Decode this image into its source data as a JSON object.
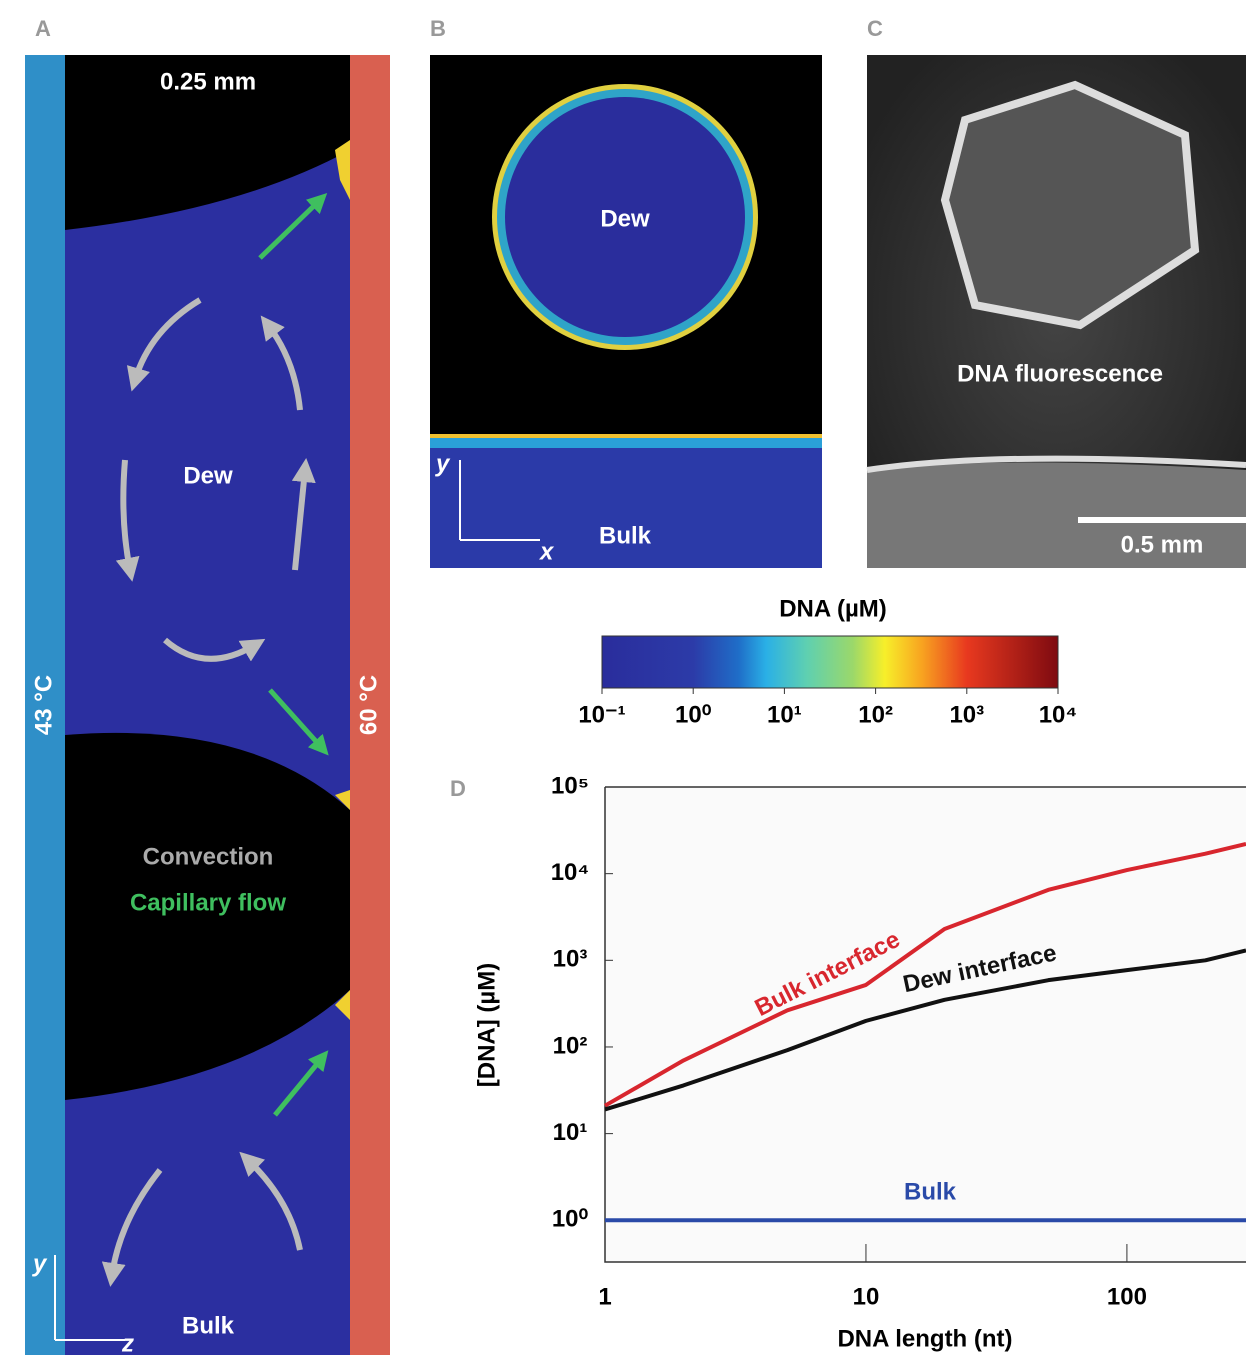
{
  "panel_a": {
    "letter": "A",
    "scale": "0.25 mm",
    "dew": "Dew",
    "convection": "Convection",
    "capillary": "Capillary flow",
    "cold": "43 °C",
    "hot": "60 °C",
    "bulk": "Bulk",
    "axis_y": "y",
    "axis_z": "z"
  },
  "panel_b": {
    "letter": "B",
    "dew": "Dew",
    "bulk": "Bulk",
    "axis_y": "y",
    "axis_x": "x"
  },
  "panel_c": {
    "letter": "C",
    "caption": "DNA fluorescence",
    "scale": "0.5 mm"
  },
  "colorbar": {
    "title": "DNA (µM)",
    "lim": [
      0.1,
      10000
    ],
    "ticks": [
      {
        "value": 0.1,
        "label": "10⁻¹"
      },
      {
        "value": 1,
        "label": "10⁰"
      },
      {
        "value": 10,
        "label": "10¹"
      },
      {
        "value": 100,
        "label": "10²"
      },
      {
        "value": 1000,
        "label": "10³"
      },
      {
        "value": 10000,
        "label": "10⁴"
      }
    ]
  },
  "chart_data": {
    "type": "line",
    "letter": "D",
    "x_label": "DNA length (nt)",
    "y_label": "[DNA] (µM)",
    "log_x": true,
    "log_y": true,
    "x": [
      1,
      2,
      5,
      10,
      20,
      50,
      100,
      200,
      286
    ],
    "series": [
      {
        "name": "Bulk interface",
        "color": "#d8262e",
        "values": [
          21,
          70,
          265,
          520,
          2300,
          6500,
          11000,
          17000,
          22000
        ]
      },
      {
        "name": "Dew interface",
        "color": "#111111",
        "values": [
          19,
          36,
          92,
          200,
          350,
          590,
          770,
          1000,
          1300
        ]
      },
      {
        "name": "Bulk",
        "color": "#2a4aa8",
        "values": [
          1,
          1,
          1,
          1,
          1,
          1,
          1,
          1,
          1
        ]
      }
    ],
    "xlim": [
      1,
      286
    ],
    "ylim": [
      0.33,
      100000
    ],
    "xticks": [
      1,
      10,
      100
    ],
    "yticks": [
      {
        "value": 1,
        "label": "10⁰"
      },
      {
        "value": 10,
        "label": "10¹"
      },
      {
        "value": 100,
        "label": "10²"
      },
      {
        "value": 1000,
        "label": "10³"
      },
      {
        "value": 10000,
        "label": "10⁴"
      },
      {
        "value": 100000,
        "label": "10⁵"
      }
    ]
  }
}
